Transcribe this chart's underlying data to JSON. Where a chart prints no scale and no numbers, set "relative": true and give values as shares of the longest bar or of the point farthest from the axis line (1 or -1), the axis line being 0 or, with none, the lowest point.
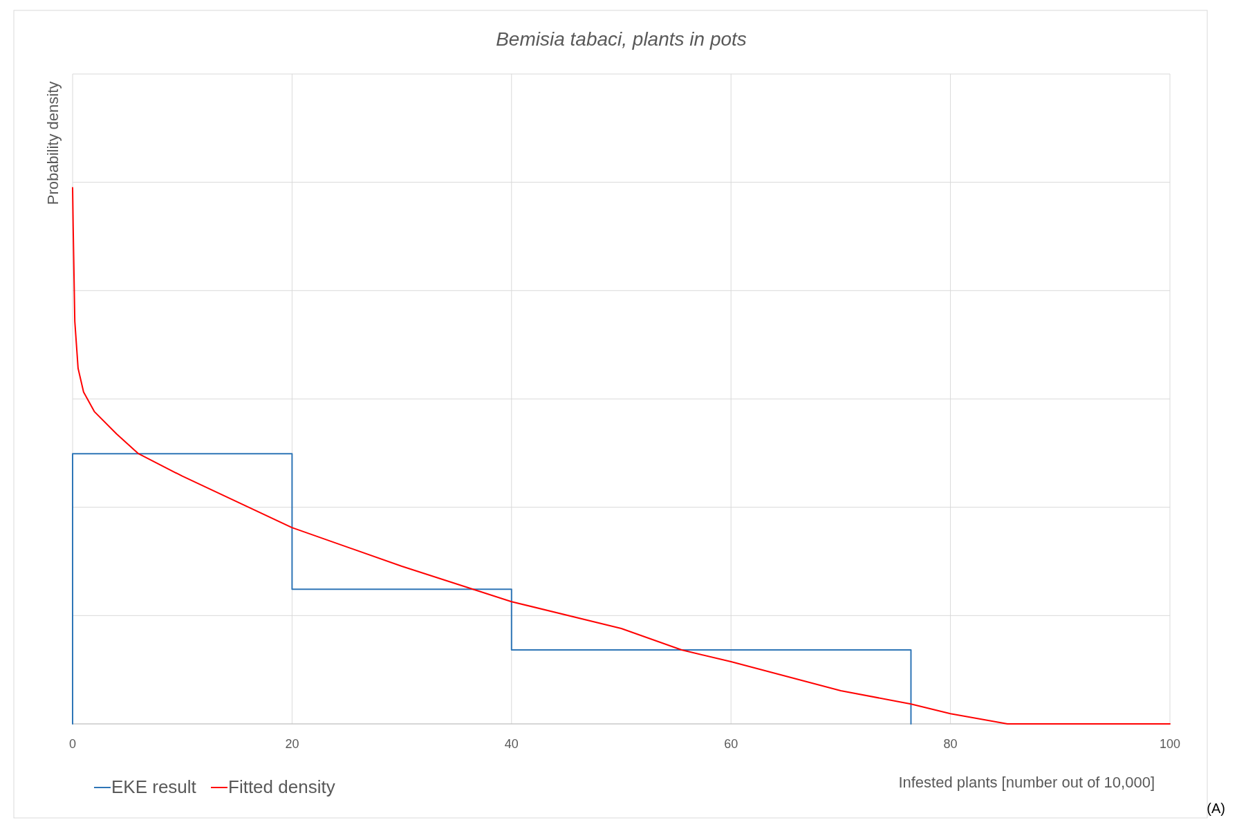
{
  "chart_data": {
    "type": "line",
    "title": "Bemisia tabaci, plants in pots",
    "xlabel": "Infested plants [number out of 10,000]",
    "ylabel": "Probability density",
    "relative": true,
    "xlim": [
      0,
      100
    ],
    "xticks": [
      0,
      20,
      40,
      60,
      80,
      100
    ],
    "grid": true,
    "legend": "bottom left",
    "annotations": [
      "(A)"
    ],
    "series": [
      {
        "name": "EKE result",
        "color": "#2e75b6",
        "x": [
          0,
          0,
          20,
          20,
          40,
          40,
          76.4,
          76.4
        ],
        "values": [
          0,
          0.504,
          0.504,
          0.251,
          0.251,
          0.138,
          0.138,
          0
        ]
      },
      {
        "name": "Fitted density",
        "color": "#ff0000",
        "x": [
          0,
          0.05,
          0.2,
          0.5,
          1,
          2,
          4,
          6,
          10,
          20,
          30,
          40,
          50,
          55.5,
          60,
          70,
          76.4,
          80,
          85.2,
          100
        ],
        "values": [
          1,
          0.928,
          0.751,
          0.663,
          0.619,
          0.582,
          0.541,
          0.504,
          0.462,
          0.366,
          0.294,
          0.228,
          0.178,
          0.138,
          0.116,
          0.062,
          0.037,
          0.019,
          0,
          0
        ]
      }
    ]
  }
}
